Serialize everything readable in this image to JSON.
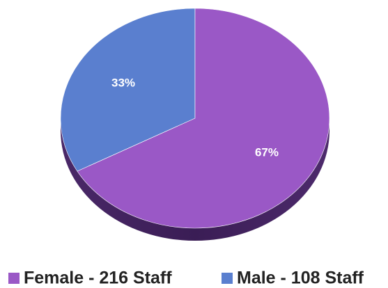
{
  "chart_data": {
    "type": "pie",
    "categories": [
      "Female - 216 Staff",
      "Male - 108 Staff"
    ],
    "values": [
      67,
      33
    ],
    "value_labels": [
      "67%",
      "33%"
    ],
    "colors": [
      "#9a58c6",
      "#5a7fcf"
    ],
    "legend": "bottom"
  }
}
